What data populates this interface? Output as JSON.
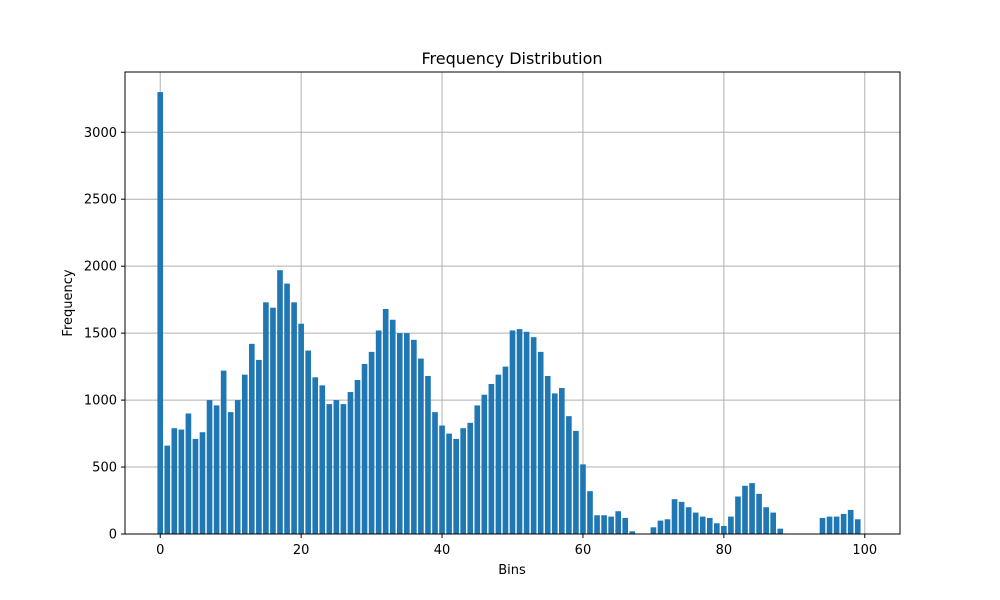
{
  "chart_data": {
    "type": "bar",
    "title": "Frequency Distribution",
    "xlabel": "Bins",
    "ylabel": "Frequency",
    "xlim": [
      -5,
      105
    ],
    "ylim": [
      0,
      3450
    ],
    "xticks": [
      0,
      20,
      40,
      60,
      80,
      100
    ],
    "yticks": [
      0,
      500,
      1000,
      1500,
      2000,
      2500,
      3000
    ],
    "grid": true,
    "bar_color": "#1f77b4",
    "x": [
      0,
      1,
      2,
      3,
      4,
      5,
      6,
      7,
      8,
      9,
      10,
      11,
      12,
      13,
      14,
      15,
      16,
      17,
      18,
      19,
      20,
      21,
      22,
      23,
      24,
      25,
      26,
      27,
      28,
      29,
      30,
      31,
      32,
      33,
      34,
      35,
      36,
      37,
      38,
      39,
      40,
      41,
      42,
      43,
      44,
      45,
      46,
      47,
      48,
      49,
      50,
      51,
      52,
      53,
      54,
      55,
      56,
      57,
      58,
      59,
      60,
      61,
      62,
      63,
      64,
      65,
      66,
      67,
      68,
      69,
      70,
      71,
      72,
      73,
      74,
      75,
      76,
      77,
      78,
      79,
      80,
      81,
      82,
      83,
      84,
      85,
      86,
      87,
      88,
      89,
      90,
      91,
      92,
      93,
      94,
      95,
      96,
      97,
      98,
      99
    ],
    "values": [
      3300,
      660,
      790,
      780,
      900,
      710,
      760,
      1000,
      960,
      1220,
      910,
      1000,
      1190,
      1420,
      1300,
      1730,
      1690,
      1970,
      1870,
      1730,
      1570,
      1370,
      1170,
      1110,
      970,
      1000,
      970,
      1060,
      1150,
      1270,
      1360,
      1520,
      1680,
      1600,
      1500,
      1500,
      1450,
      1310,
      1180,
      910,
      810,
      750,
      710,
      790,
      830,
      960,
      1040,
      1120,
      1190,
      1250,
      1520,
      1530,
      1510,
      1470,
      1360,
      1180,
      1050,
      1090,
      880,
      770,
      520,
      320,
      140,
      140,
      130,
      170,
      120,
      20,
      0,
      0,
      50,
      100,
      110,
      260,
      240,
      200,
      160,
      130,
      120,
      80,
      60,
      130,
      280,
      360,
      380,
      300,
      200,
      160,
      40,
      0,
      0,
      0,
      0,
      0,
      120,
      130,
      130,
      150,
      180,
      110
    ]
  }
}
